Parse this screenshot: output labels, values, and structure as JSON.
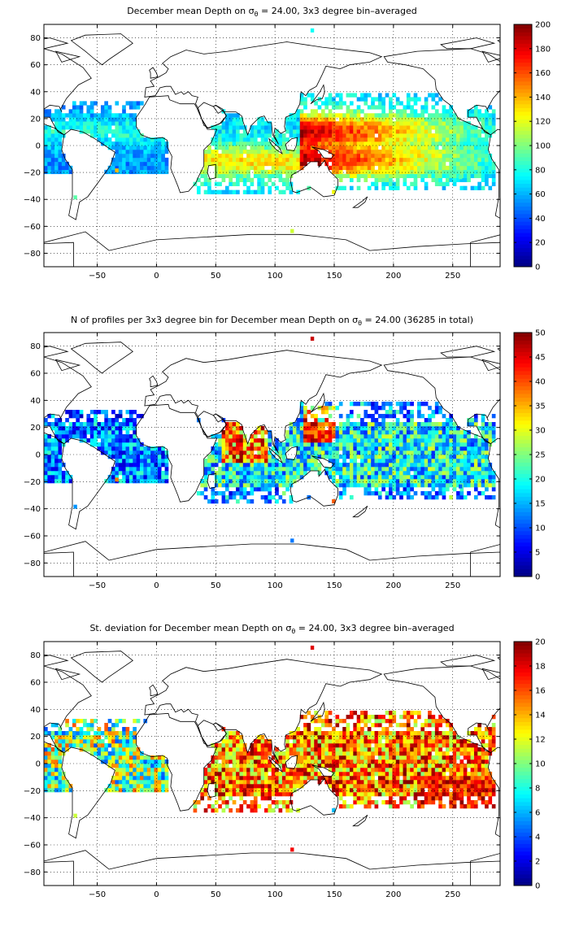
{
  "panels": [
    {
      "title_prefix": "December mean Depth on σ",
      "title_sub": "θ",
      "title_suffix": " = 24.00, 3x3 degree bin–averaged",
      "chart_data": {
        "type": "heatmap",
        "xlim": [
          -95,
          290
        ],
        "ylim": [
          -90,
          90
        ],
        "xticks": [
          -50,
          0,
          50,
          100,
          150,
          200,
          250
        ],
        "yticks": [
          -80,
          -60,
          -40,
          -20,
          0,
          20,
          40,
          60,
          80
        ],
        "grid": true,
        "colorbar": {
          "min": 0,
          "max": 200,
          "ticks": [
            0,
            20,
            40,
            60,
            80,
            100,
            120,
            140,
            160,
            180,
            200
          ]
        },
        "variable": "depth",
        "seed": 11
      }
    },
    {
      "title_prefix": "N of profiles per 3x3 degree bin for December mean Depth on σ",
      "title_sub": "θ",
      "title_suffix": " = 24.00 (36285 in total)",
      "chart_data": {
        "type": "heatmap",
        "xlim": [
          -95,
          290
        ],
        "ylim": [
          -90,
          90
        ],
        "xticks": [
          -50,
          0,
          50,
          100,
          150,
          200,
          250
        ],
        "yticks": [
          -80,
          -60,
          -40,
          -20,
          0,
          20,
          40,
          60,
          80
        ],
        "grid": true,
        "colorbar": {
          "min": 0,
          "max": 50,
          "ticks": [
            0,
            5,
            10,
            15,
            20,
            25,
            30,
            35,
            40,
            45,
            50
          ]
        },
        "variable": "count",
        "total_profiles": 36285,
        "seed": 23
      }
    },
    {
      "title_prefix": "St. deviation for December mean Depth on σ",
      "title_sub": "θ",
      "title_suffix": " = 24.00, 3x3 degree bin–averaged",
      "chart_data": {
        "type": "heatmap",
        "xlim": [
          -95,
          290
        ],
        "ylim": [
          -90,
          90
        ],
        "xticks": [
          -50,
          0,
          50,
          100,
          150,
          200,
          250
        ],
        "yticks": [
          -80,
          -60,
          -40,
          -20,
          0,
          20,
          40,
          60,
          80
        ],
        "grid": true,
        "colorbar": {
          "min": 0,
          "max": 20,
          "ticks": [
            0,
            2,
            4,
            6,
            8,
            10,
            12,
            14,
            16,
            18,
            20
          ]
        },
        "variable": "stddev",
        "seed": 37
      }
    }
  ],
  "colormap": "jet"
}
